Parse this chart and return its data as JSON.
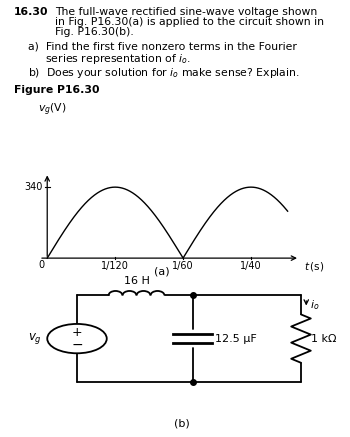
{
  "title_number": "16.30",
  "title_line1": "The full-wave rectified sine-wave voltage shown",
  "title_line2": "in Fig. P16.30(a) is applied to the circuit shown in",
  "title_line3": "Fig. P16.30(b).",
  "part_a_line1": "a)  Find the first five nonzero terms in the Fourier",
  "part_a_line2": "     series representation of ",
  "part_b": "b)  Does your solution for ",
  "part_b2": " make sense? Explain.",
  "fig_label": "Figure P16.30",
  "ylabel": "v_g(V)",
  "xlabel": "t (s)",
  "y_tick_val": 340,
  "x_ticks": [
    "1/120",
    "1/60",
    "1/40"
  ],
  "x_tick_vals": [
    0.008333,
    0.016667,
    0.025
  ],
  "amplitude": 340,
  "fig_sub_a": "(a)",
  "fig_sub_b": "(b)",
  "inductor_label": "16 H",
  "cap_label": "12.5 μF",
  "res_label": "1 kΩ",
  "bg_color": "#ffffff",
  "wave_color": "#000000"
}
